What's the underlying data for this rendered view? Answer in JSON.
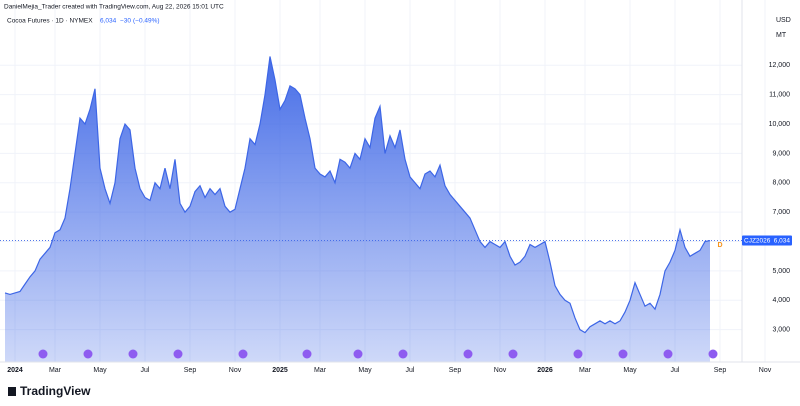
{
  "header": {
    "attribution": "DanielMejia_Trader created with TradingView.com, Aug 22, 2026 15:01 UTC",
    "logo": "TradingView"
  },
  "chart_data": {
    "type": "area",
    "title": "Cocoa Futures · 1D · NYMEX",
    "last_value": {
      "value": 6034,
      "label": "6,034"
    },
    "change": {
      "value": -30,
      "label": "−30"
    },
    "change_pct": {
      "value": -0.49,
      "label": "(−0.49%)"
    },
    "currency": "USD",
    "unit": "MT",
    "marker": "D",
    "grid": true,
    "ylim": [
      1900,
      13950
    ],
    "yticks": [
      {
        "value": 3000,
        "label": "3,000"
      },
      {
        "value": 4000,
        "label": "4,000"
      },
      {
        "value": 5000,
        "label": "5,000"
      },
      {
        "value": 6000,
        "label": "6,000"
      },
      {
        "value": 7000,
        "label": "7,000"
      },
      {
        "value": 8000,
        "label": "8,000"
      },
      {
        "value": 9000,
        "label": "9,000"
      },
      {
        "value": 10000,
        "label": "10,000"
      },
      {
        "value": 11000,
        "label": "11,000"
      },
      {
        "value": 12000,
        "label": "12,000"
      }
    ],
    "categories": [
      null,
      null,
      "2024",
      null,
      null,
      null,
      null,
      null,
      null,
      null,
      "Mar",
      null,
      null,
      null,
      null,
      null,
      null,
      null,
      null,
      "May",
      null,
      null,
      null,
      null,
      null,
      null,
      null,
      null,
      "Jul",
      null,
      null,
      null,
      null,
      null,
      null,
      null,
      null,
      "Sep",
      null,
      null,
      null,
      null,
      null,
      null,
      null,
      null,
      "Nov",
      null,
      null,
      null,
      null,
      null,
      null,
      null,
      null,
      "2025",
      null,
      null,
      null,
      null,
      null,
      null,
      null,
      "Mar",
      null,
      null,
      null,
      null,
      null,
      null,
      null,
      null,
      "May",
      null,
      null,
      null,
      null,
      null,
      null,
      null,
      null,
      "Jul",
      null,
      null,
      null,
      null,
      null,
      null,
      null,
      null,
      "Sep",
      null,
      null,
      null,
      null,
      null,
      null,
      null,
      null,
      "Nov",
      null,
      null,
      null,
      null,
      null,
      null,
      null,
      null,
      "2026",
      null,
      null,
      null,
      null,
      null,
      null,
      null,
      "Mar",
      null,
      null,
      null,
      null,
      null,
      null,
      null,
      null,
      "May",
      null,
      null,
      null,
      null,
      null,
      null,
      null,
      null,
      "Jul",
      null,
      null,
      null,
      null,
      null,
      null,
      null,
      null,
      "Sep",
      null,
      null,
      null,
      null,
      null,
      null,
      null,
      null,
      "Nov"
    ],
    "series": [
      {
        "name": "CJZ2026",
        "color": "#3d66e6",
        "values": [
          4250,
          4200,
          4250,
          4300,
          4550,
          4800,
          5000,
          5400,
          5600,
          5800,
          6300,
          6400,
          6800,
          7800,
          9000,
          10200,
          10000,
          10500,
          11200,
          8500,
          7800,
          7300,
          8000,
          9500,
          10000,
          9800,
          8500,
          7800,
          7500,
          7400,
          8000,
          7800,
          8500,
          7800,
          8800,
          7300,
          7000,
          7200,
          7700,
          7900,
          7500,
          7800,
          7600,
          7800,
          7200,
          7000,
          7100,
          7800,
          8500,
          9500,
          9300,
          10000,
          11000,
          12300,
          11500,
          10500,
          10800,
          11300,
          11200,
          11000,
          10200,
          9500,
          8500,
          8300,
          8200,
          8400,
          8000,
          8800,
          8700,
          8500,
          9000,
          8800,
          9500,
          9200,
          10200,
          10600,
          9000,
          9600,
          9200,
          9800,
          8800,
          8200,
          8000,
          7800,
          8300,
          8400,
          8200,
          8600,
          7900,
          7600,
          7400,
          7200,
          7000,
          6800,
          6400,
          6000,
          5800,
          6000,
          5900,
          5800,
          6000,
          5500,
          5200,
          5300,
          5500,
          5900,
          5800,
          5900,
          6000,
          5300,
          4500,
          4200,
          4000,
          3900,
          3400,
          3000,
          2900,
          3100,
          3200,
          3300,
          3200,
          3300,
          3200,
          3300,
          3600,
          4000,
          4600,
          4200,
          3800,
          3900,
          3700,
          4200,
          5000,
          5300,
          5700,
          6400,
          5800,
          5500,
          5600,
          5700,
          6000,
          6034,
          null,
          null,
          null,
          null,
          null,
          null,
          null,
          null,
          null,
          null,
          null
        ]
      }
    ]
  }
}
